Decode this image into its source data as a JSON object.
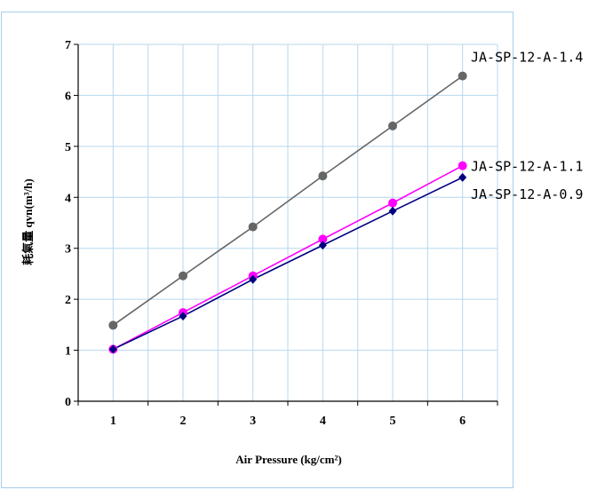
{
  "chart_data": {
    "type": "line",
    "xlabel": "Air Pressure (kg/cm²)",
    "ylabel": "耗氣量 qvn(m³/h)",
    "x": [
      1,
      2,
      3,
      4,
      5,
      6
    ],
    "xlim": [
      0.5,
      6.5
    ],
    "ylim": [
      0,
      7
    ],
    "yticks": [
      0,
      1,
      2,
      3,
      4,
      5,
      6,
      7
    ],
    "grid": true,
    "series": [
      {
        "name": "JA-SP-12-A-1.4",
        "values": [
          1.49,
          2.46,
          3.42,
          4.42,
          5.4,
          6.38
        ],
        "color": "#666666",
        "marker": "circle"
      },
      {
        "name": "JA-SP-12-A-1.1",
        "values": [
          1.02,
          1.74,
          2.46,
          3.18,
          3.89,
          4.62
        ],
        "color": "#ff00ff",
        "marker": "circle"
      },
      {
        "name": "JA-SP-12-A-0.9",
        "values": [
          1.02,
          1.67,
          2.39,
          3.06,
          3.73,
          4.39
        ],
        "color": "#000080",
        "marker": "diamond"
      }
    ]
  }
}
